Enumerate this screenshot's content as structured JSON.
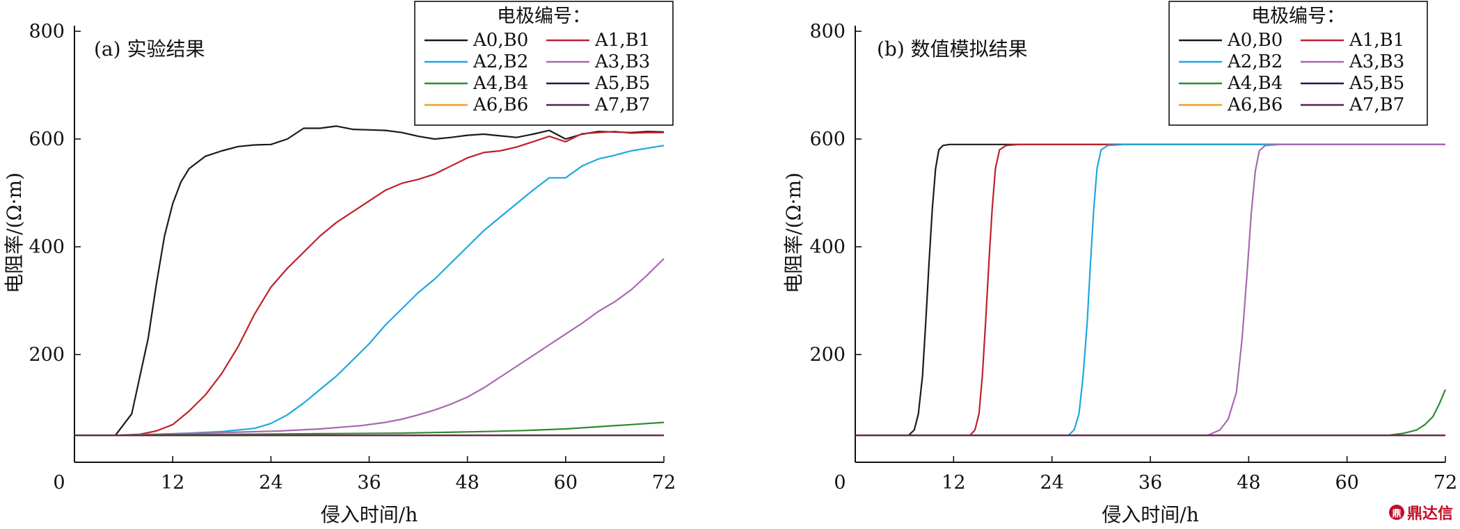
{
  "chart_data": [
    {
      "type": "line",
      "title": "(a) 实验结果",
      "xlabel": "侵入时间/h",
      "ylabel": "电阻率/(Ω·m)",
      "xlim": [
        0,
        72
      ],
      "ylim": [
        0,
        800
      ],
      "xticks": [
        0,
        12,
        24,
        36,
        48,
        60,
        72
      ],
      "yticks": [
        200,
        400,
        600,
        800
      ],
      "legend_title": "电极编号：",
      "legend_position": "top-right",
      "series": [
        {
          "name": "A0,B0",
          "color": "#1a1a1a",
          "x": [
            0,
            5,
            7,
            9,
            10,
            11,
            12,
            13,
            14,
            16,
            18,
            20,
            22,
            24,
            26,
            28,
            30,
            32,
            34,
            36,
            38,
            40,
            42,
            44,
            46,
            48,
            50,
            52,
            54,
            56,
            58,
            60,
            62,
            64,
            66,
            68,
            70,
            72
          ],
          "y": [
            50,
            50,
            90,
            230,
            330,
            420,
            480,
            520,
            545,
            568,
            578,
            586,
            589,
            590,
            600,
            620,
            620,
            624,
            618,
            617,
            616,
            612,
            605,
            600,
            603,
            607,
            609,
            606,
            603,
            609,
            616,
            600,
            609,
            614,
            613,
            612,
            614,
            613
          ]
        },
        {
          "name": "A1,B1",
          "color": "#c0202a",
          "x": [
            0,
            5,
            8,
            10,
            12,
            14,
            16,
            18,
            20,
            22,
            24,
            26,
            28,
            30,
            32,
            34,
            36,
            38,
            40,
            42,
            44,
            46,
            48,
            50,
            52,
            54,
            56,
            58,
            60,
            62,
            64,
            66,
            68,
            70,
            72
          ],
          "y": [
            50,
            50,
            52,
            58,
            70,
            95,
            125,
            165,
            215,
            275,
            325,
            360,
            390,
            420,
            445,
            465,
            485,
            505,
            518,
            525,
            535,
            550,
            565,
            575,
            578,
            585,
            595,
            605,
            595,
            610,
            612,
            614,
            611,
            612,
            612
          ]
        },
        {
          "name": "A2,B2",
          "color": "#1ea7e0",
          "x": [
            0,
            5,
            10,
            14,
            18,
            22,
            24,
            26,
            28,
            30,
            32,
            34,
            36,
            38,
            40,
            42,
            44,
            46,
            48,
            50,
            52,
            54,
            56,
            58,
            60,
            62,
            64,
            66,
            68,
            70,
            72
          ],
          "y": [
            50,
            50,
            52,
            54,
            57,
            63,
            72,
            88,
            110,
            135,
            160,
            190,
            220,
            255,
            285,
            315,
            340,
            370,
            400,
            430,
            455,
            480,
            505,
            528,
            528,
            550,
            563,
            570,
            578,
            583,
            588
          ]
        },
        {
          "name": "A3,B3",
          "color": "#a868b0",
          "x": [
            0,
            5,
            10,
            15,
            20,
            25,
            30,
            35,
            38,
            40,
            42,
            44,
            46,
            48,
            50,
            52,
            54,
            56,
            58,
            60,
            62,
            64,
            66,
            68,
            70,
            72
          ],
          "y": [
            50,
            50,
            52,
            54,
            56,
            58,
            62,
            68,
            74,
            80,
            88,
            97,
            108,
            121,
            138,
            158,
            178,
            198,
            218,
            238,
            258,
            280,
            298,
            320,
            348,
            378
          ]
        },
        {
          "name": "A4,B4",
          "color": "#2e8b2e",
          "x": [
            0,
            5,
            10,
            20,
            30,
            40,
            50,
            55,
            60,
            64,
            68,
            72
          ],
          "y": [
            50,
            50,
            51,
            52,
            53,
            54,
            57,
            59,
            62,
            66,
            70,
            74
          ]
        },
        {
          "name": "A5,B5",
          "color": "#1a1a5a",
          "x": [
            0,
            72
          ],
          "y": [
            50,
            50
          ]
        },
        {
          "name": "A6,B6",
          "color": "#f0a020",
          "x": [
            0,
            72
          ],
          "y": [
            50,
            50
          ]
        },
        {
          "name": "A7,B7",
          "color": "#5a1a5a",
          "x": [
            0,
            72
          ],
          "y": [
            50,
            50
          ]
        }
      ]
    },
    {
      "type": "line",
      "title": "(b) 数值模拟结果",
      "xlabel": "侵入时间/h",
      "ylabel": "电阻率/(Ω·m)",
      "xlim": [
        0,
        72
      ],
      "ylim": [
        0,
        800
      ],
      "xticks": [
        0,
        12,
        24,
        36,
        48,
        60,
        72
      ],
      "yticks": [
        200,
        400,
        600,
        800
      ],
      "legend_title": "电极编号：",
      "legend_position": "top-right",
      "series": [
        {
          "name": "A0,B0",
          "color": "#1a1a1a",
          "x": [
            0,
            6.5,
            7.2,
            7.7,
            8.2,
            8.6,
            9.0,
            9.4,
            9.8,
            10.2,
            10.7,
            11.5,
            72
          ],
          "y": [
            50,
            50,
            60,
            90,
            160,
            260,
            370,
            470,
            545,
            580,
            588,
            590,
            590
          ]
        },
        {
          "name": "A1,B1",
          "color": "#c0202a",
          "x": [
            0,
            14,
            14.6,
            15.1,
            15.5,
            15.9,
            16.3,
            16.7,
            17.1,
            17.6,
            18.4,
            20,
            72
          ],
          "y": [
            50,
            50,
            60,
            90,
            160,
            260,
            370,
            470,
            545,
            580,
            588,
            590,
            590
          ]
        },
        {
          "name": "A2,B2",
          "color": "#1ea7e0",
          "x": [
            0,
            26,
            26.7,
            27.3,
            27.8,
            28.3,
            28.7,
            29.1,
            29.5,
            30,
            30.8,
            33,
            72
          ],
          "y": [
            50,
            50,
            60,
            90,
            160,
            260,
            370,
            470,
            545,
            580,
            588,
            590,
            590
          ]
        },
        {
          "name": "A3,B3",
          "color": "#a868b0",
          "x": [
            0,
            43,
            44.5,
            45.5,
            46.5,
            47.2,
            47.8,
            48.3,
            48.8,
            49.3,
            50,
            52,
            72
          ],
          "y": [
            50,
            50,
            60,
            80,
            130,
            230,
            350,
            460,
            540,
            578,
            588,
            590,
            590
          ]
        },
        {
          "name": "A4,B4",
          "color": "#2e8b2e",
          "x": [
            0,
            65,
            67,
            68.5,
            69.5,
            70.5,
            71.3,
            72
          ],
          "y": [
            50,
            50,
            54,
            60,
            70,
            85,
            110,
            135
          ]
        },
        {
          "name": "A5,B5",
          "color": "#1a1a5a",
          "x": [
            0,
            72
          ],
          "y": [
            50,
            50
          ]
        },
        {
          "name": "A6,B6",
          "color": "#f0a020",
          "x": [
            0,
            72
          ],
          "y": [
            50,
            50
          ]
        },
        {
          "name": "A7,B7",
          "color": "#5a1a5a",
          "x": [
            0,
            72
          ],
          "y": [
            50,
            50
          ]
        }
      ]
    }
  ],
  "watermark": {
    "logo": "鼎",
    "text": "鼎达信"
  }
}
